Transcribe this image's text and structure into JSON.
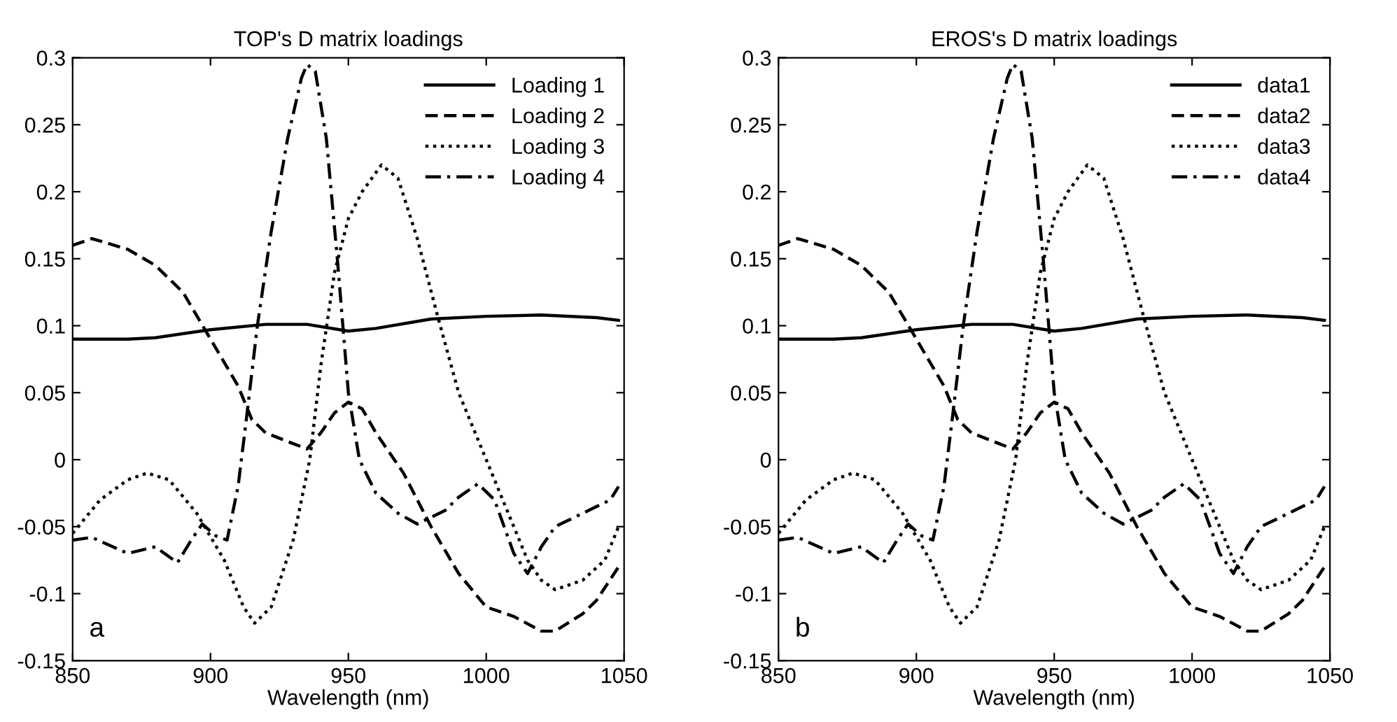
{
  "chart_data": [
    {
      "type": "line",
      "title": "TOP's D matrix loadings",
      "xlabel": "Wavelength (nm)",
      "xlim": [
        850,
        1050
      ],
      "xticks": [
        850,
        900,
        950,
        1000,
        1050
      ],
      "ylim": [
        -0.15,
        0.3
      ],
      "yticks": [
        -0.15,
        -0.1,
        -0.05,
        0,
        0.05,
        0.1,
        0.15,
        0.2,
        0.25,
        0.3
      ],
      "legend": "top right",
      "grid": false,
      "annotations": [
        "a"
      ],
      "series": [
        {
          "name": "Loading 1",
          "color": "#000000",
          "line_style": "solid",
          "x": [
            850,
            870,
            880,
            900,
            920,
            935,
            950,
            960,
            980,
            1000,
            1020,
            1040,
            1048
          ],
          "values": [
            0.09,
            0.09,
            0.091,
            0.097,
            0.101,
            0.101,
            0.096,
            0.098,
            0.105,
            0.107,
            0.108,
            0.106,
            0.104
          ]
        },
        {
          "name": "Loading 2",
          "color": "#000000",
          "line_style": "dashed",
          "x": [
            850,
            857,
            870,
            880,
            890,
            900,
            910,
            915,
            920,
            930,
            935,
            940,
            945,
            950,
            955,
            960,
            970,
            980,
            990,
            1000,
            1010,
            1020,
            1025,
            1035,
            1040,
            1048
          ],
          "values": [
            0.16,
            0.165,
            0.157,
            0.145,
            0.125,
            0.09,
            0.055,
            0.03,
            0.02,
            0.012,
            0.008,
            0.02,
            0.035,
            0.043,
            0.038,
            0.02,
            -0.01,
            -0.05,
            -0.085,
            -0.11,
            -0.117,
            -0.128,
            -0.128,
            -0.115,
            -0.105,
            -0.08
          ]
        },
        {
          "name": "Loading 3",
          "color": "#000000",
          "line_style": "dotted",
          "x": [
            850,
            860,
            870,
            877,
            885,
            895,
            905,
            912,
            916,
            922,
            930,
            936,
            940,
            945,
            950,
            955,
            962,
            968,
            975,
            982,
            990,
            1000,
            1010,
            1015,
            1020,
            1025,
            1035,
            1043,
            1048
          ],
          "values": [
            -0.055,
            -0.03,
            -0.015,
            -0.01,
            -0.015,
            -0.04,
            -0.075,
            -0.11,
            -0.122,
            -0.11,
            -0.06,
            0.0,
            0.07,
            0.14,
            0.18,
            0.2,
            0.22,
            0.21,
            0.165,
            0.11,
            0.05,
            0.0,
            -0.05,
            -0.075,
            -0.09,
            -0.097,
            -0.09,
            -0.075,
            -0.05
          ]
        },
        {
          "name": "Loading 4",
          "color": "#000000",
          "line_style": "dashdot",
          "x": [
            850,
            857,
            870,
            880,
            888,
            893,
            897,
            902,
            906,
            910,
            913,
            917,
            922,
            928,
            933,
            935,
            938,
            942,
            946,
            950,
            954,
            960,
            968,
            975,
            985,
            990,
            997,
            1003,
            1010,
            1015,
            1020,
            1025,
            1030,
            1040,
            1045,
            1048
          ],
          "values": [
            -0.06,
            -0.058,
            -0.07,
            -0.065,
            -0.077,
            -0.06,
            -0.048,
            -0.057,
            -0.06,
            -0.02,
            0.03,
            0.1,
            0.17,
            0.24,
            0.285,
            0.295,
            0.29,
            0.24,
            0.15,
            0.05,
            0.0,
            -0.025,
            -0.04,
            -0.048,
            -0.038,
            -0.028,
            -0.018,
            -0.03,
            -0.07,
            -0.085,
            -0.065,
            -0.05,
            -0.045,
            -0.035,
            -0.03,
            -0.02
          ]
        }
      ]
    },
    {
      "type": "line",
      "title": "EROS's D matrix loadings",
      "xlabel": "Wavelength (nm)",
      "xlim": [
        850,
        1050
      ],
      "xticks": [
        850,
        900,
        950,
        1000,
        1050
      ],
      "ylim": [
        -0.15,
        0.3
      ],
      "yticks": [
        -0.15,
        -0.1,
        -0.05,
        0,
        0.05,
        0.1,
        0.15,
        0.2,
        0.25,
        0.3
      ],
      "legend": "top right",
      "grid": false,
      "annotations": [
        "b"
      ],
      "series": [
        {
          "name": "data1",
          "color": "#000000",
          "line_style": "solid",
          "x": [
            850,
            870,
            880,
            900,
            920,
            935,
            950,
            960,
            980,
            1000,
            1020,
            1040,
            1048
          ],
          "values": [
            0.09,
            0.09,
            0.091,
            0.097,
            0.101,
            0.101,
            0.096,
            0.098,
            0.105,
            0.107,
            0.108,
            0.106,
            0.104
          ]
        },
        {
          "name": "data2",
          "color": "#000000",
          "line_style": "dashed",
          "x": [
            850,
            857,
            870,
            880,
            890,
            900,
            910,
            915,
            920,
            930,
            935,
            940,
            945,
            950,
            955,
            960,
            970,
            980,
            990,
            1000,
            1010,
            1020,
            1025,
            1035,
            1040,
            1048
          ],
          "values": [
            0.16,
            0.165,
            0.157,
            0.145,
            0.125,
            0.09,
            0.055,
            0.03,
            0.02,
            0.012,
            0.008,
            0.02,
            0.035,
            0.043,
            0.038,
            0.02,
            -0.01,
            -0.05,
            -0.085,
            -0.11,
            -0.117,
            -0.128,
            -0.128,
            -0.115,
            -0.105,
            -0.08
          ]
        },
        {
          "name": "data3",
          "color": "#000000",
          "line_style": "dotted",
          "x": [
            850,
            860,
            870,
            877,
            885,
            895,
            905,
            912,
            916,
            922,
            930,
            936,
            940,
            945,
            950,
            955,
            962,
            968,
            975,
            982,
            990,
            1000,
            1010,
            1015,
            1020,
            1025,
            1035,
            1043,
            1048
          ],
          "values": [
            -0.055,
            -0.03,
            -0.015,
            -0.01,
            -0.015,
            -0.04,
            -0.075,
            -0.11,
            -0.122,
            -0.11,
            -0.06,
            0.0,
            0.07,
            0.14,
            0.18,
            0.2,
            0.22,
            0.21,
            0.165,
            0.11,
            0.05,
            0.0,
            -0.05,
            -0.075,
            -0.09,
            -0.097,
            -0.09,
            -0.075,
            -0.05
          ]
        },
        {
          "name": "data4",
          "color": "#000000",
          "line_style": "dashdot",
          "x": [
            850,
            857,
            870,
            880,
            888,
            893,
            897,
            902,
            906,
            910,
            913,
            917,
            922,
            928,
            933,
            935,
            938,
            942,
            946,
            950,
            954,
            960,
            968,
            975,
            985,
            990,
            997,
            1003,
            1010,
            1015,
            1020,
            1025,
            1030,
            1040,
            1045,
            1048
          ],
          "values": [
            -0.06,
            -0.058,
            -0.07,
            -0.065,
            -0.077,
            -0.06,
            -0.048,
            -0.057,
            -0.06,
            -0.02,
            0.03,
            0.1,
            0.17,
            0.24,
            0.285,
            0.295,
            0.29,
            0.24,
            0.15,
            0.05,
            0.0,
            -0.025,
            -0.04,
            -0.048,
            -0.038,
            -0.028,
            -0.018,
            -0.03,
            -0.07,
            -0.085,
            -0.065,
            -0.05,
            -0.045,
            -0.035,
            -0.03,
            -0.02
          ]
        }
      ]
    }
  ]
}
